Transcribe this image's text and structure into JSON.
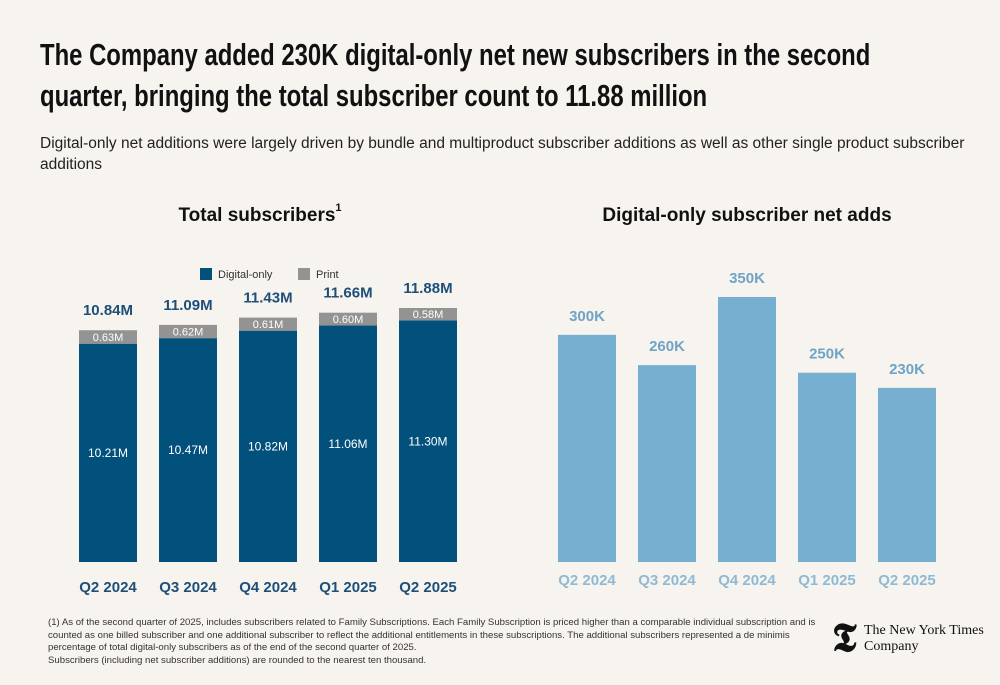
{
  "header": {
    "title": "The Company added 230K digital-only net new subscribers in the second quarter, bringing the total subscriber count to 11.88 million",
    "subtitle": "Digital-only net additions were largely driven by bundle and multiproduct subscriber additions as well as other single product subscriber additions"
  },
  "chart_data": [
    {
      "type": "stacked_bar",
      "title": "Total subscribers",
      "title_note": "1",
      "categories": [
        "Q2 2024",
        "Q3 2024",
        "Q4 2024",
        "Q1 2025",
        "Q2 2025"
      ],
      "series": [
        {
          "name": "Digital-only",
          "color": "#02517d",
          "values": [
            10.21,
            10.47,
            10.82,
            11.06,
            11.3
          ],
          "value_labels": [
            "10.21M",
            "10.47M",
            "10.82M",
            "11.06M",
            "11.30M"
          ]
        },
        {
          "name": "Print",
          "color": "#939393",
          "values": [
            0.63,
            0.62,
            0.61,
            0.6,
            0.58
          ],
          "value_labels": [
            "0.63M",
            "0.62M",
            "0.61M",
            "0.60M",
            "0.58M"
          ]
        }
      ],
      "totals": {
        "values": [
          10.84,
          11.09,
          11.43,
          11.66,
          11.88
        ],
        "value_labels": [
          "10.84M",
          "11.09M",
          "11.43M",
          "11.66M",
          "11.88M"
        ]
      }
    },
    {
      "type": "bar",
      "title": "Digital-only subscriber net adds",
      "categories": [
        "Q2 2024",
        "Q3 2024",
        "Q4 2024",
        "Q1 2025",
        "Q2 2025"
      ],
      "values": [
        300,
        260,
        350,
        250,
        230
      ],
      "value_labels": [
        "300K",
        "260K",
        "350K",
        "250K",
        "230K"
      ],
      "color": "#77afd0"
    }
  ],
  "footnotes": [
    "(1) As of the second quarter of 2025, includes subscribers related to Family Subscriptions. Each Family Subscription is priced higher than a comparable individual subscription and is counted as one billed subscriber and one additional subscriber to reflect the additional entitlements in these subscriptions. The additional subscribers represented a de minimis percentage of total digital-only subscribers as of the end of the second quarter of 2025.",
    "Subscribers (including net subscriber additions) are rounded to the nearest ten thousand."
  ],
  "logo": "The New York Times Company"
}
